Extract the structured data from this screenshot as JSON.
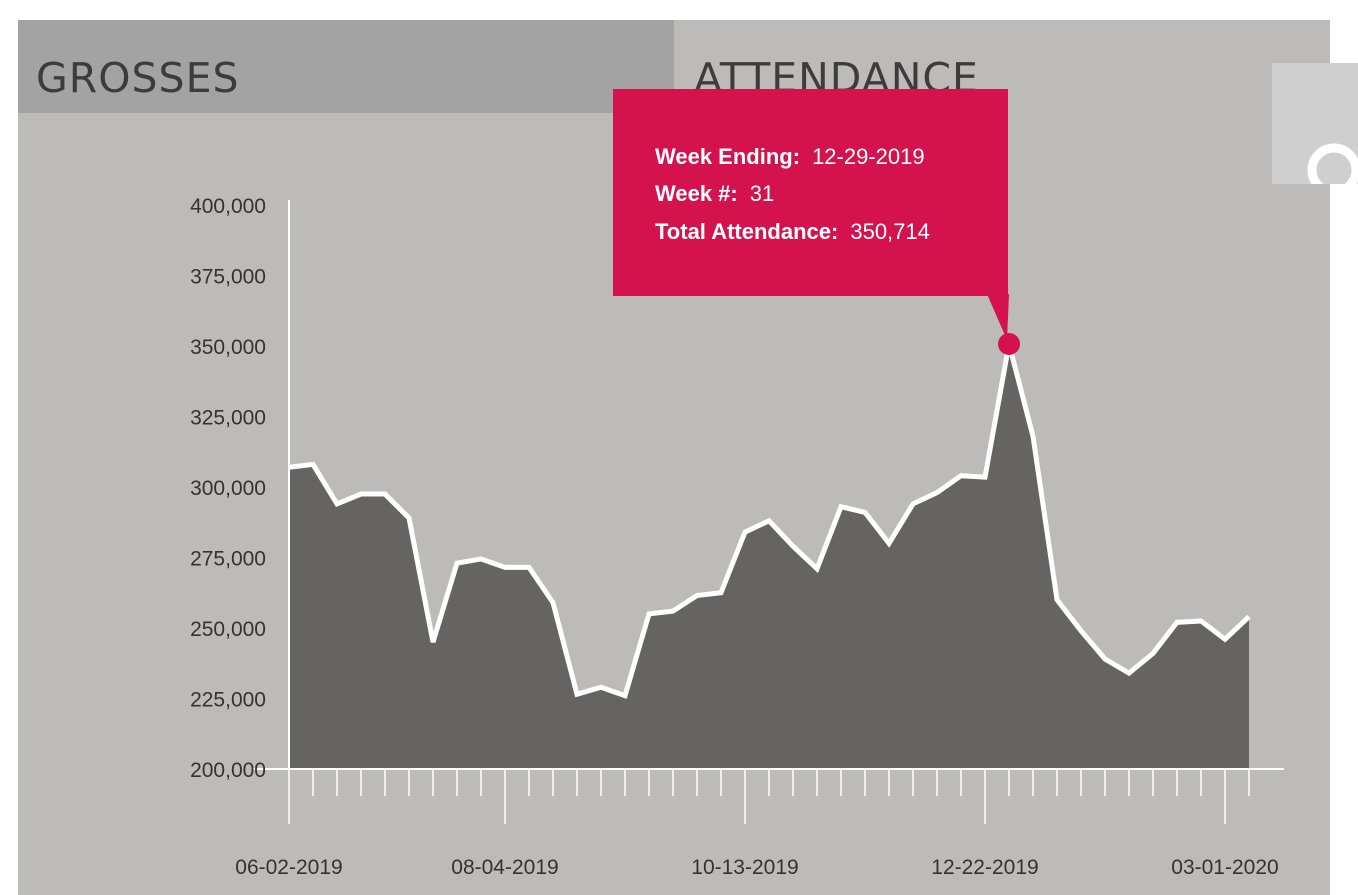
{
  "tabs": {
    "grosses": "GROSSES",
    "attendance": "ATTENDANCE"
  },
  "search": {
    "icon": "search-icon"
  },
  "colors": {
    "panel": "#bcbbb9",
    "tab_inactive": "#a3a3a3",
    "area_fill": "#656462",
    "line": "#ffffff",
    "accent": "#d4124e"
  },
  "tooltip": {
    "week_ending_label": "Week Ending:",
    "week_ending_value": "12-29-2019",
    "week_num_label": "Week #:",
    "week_num_value": "31",
    "total_label": "Total Attendance:",
    "total_value": "350,714"
  },
  "chart_data": {
    "type": "area",
    "highlight_index": 30,
    "x_tick_labels": [
      "06-02-2019",
      "08-04-2019",
      "10-13-2019",
      "12-22-2019",
      "03-01-2020"
    ],
    "x_tick_label_indices": [
      0,
      9,
      19,
      29,
      39
    ],
    "y_ticks": [
      200000,
      225000,
      250000,
      275000,
      300000,
      325000,
      350000,
      375000,
      400000
    ],
    "y_tick_labels": [
      "200,000",
      "225,000",
      "250,000",
      "275,000",
      "300,000",
      "325,000",
      "350,000",
      "375,000",
      "400,000"
    ],
    "ylim": [
      200000,
      400000
    ],
    "grid": false,
    "values": [
      307000,
      308000,
      294000,
      297500,
      297500,
      289000,
      245000,
      273000,
      274500,
      271500,
      271500,
      259000,
      226500,
      229000,
      226000,
      255000,
      256000,
      261500,
      262500,
      284000,
      288000,
      279000,
      271000,
      293000,
      291000,
      280000,
      294000,
      298000,
      304000,
      303500,
      350714,
      318000,
      260000,
      249000,
      239000,
      234000,
      241000,
      252000,
      252500,
      246000,
      254000
    ]
  }
}
